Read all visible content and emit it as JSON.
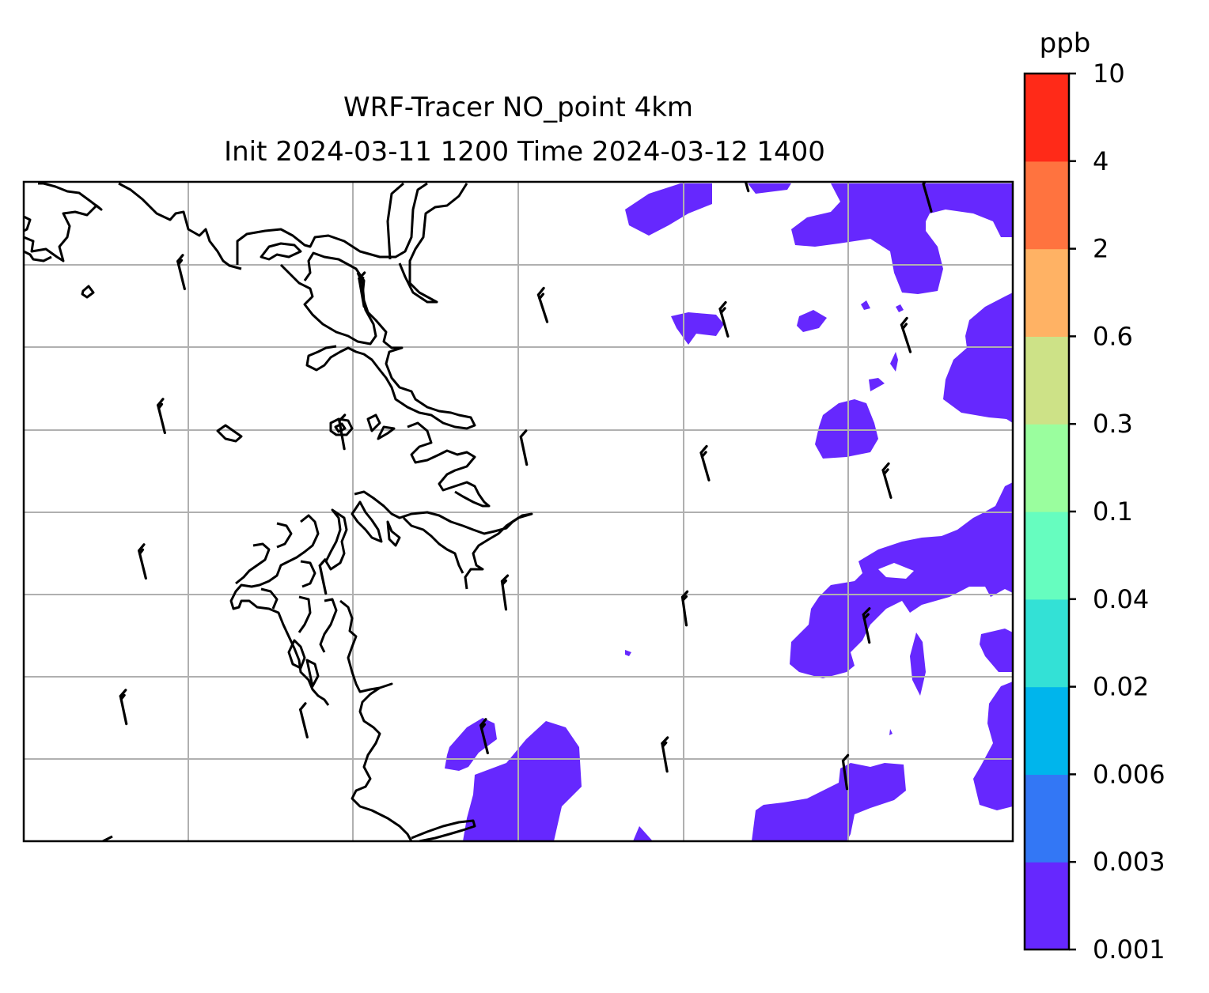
{
  "title": {
    "line1": "WRF-Tracer NO_point 4km",
    "line2": "Init 2024-03-11 1200 Time 2024-03-12 1400"
  },
  "colorbar": {
    "unit": "ppb",
    "levels": [
      "0.001",
      "0.003",
      "0.006",
      "0.02",
      "0.04",
      "0.1",
      "0.3",
      "0.6",
      "2",
      "4",
      "10"
    ],
    "colors": [
      "#6628fe",
      "#3377f5",
      "#00b5ec",
      "#33e1d6",
      "#66fdbf",
      "#9afe9e",
      "#cde287",
      "#ffb264",
      "#ff733f",
      "#ff2a18"
    ]
  },
  "map": {
    "field_color": "#6628fe",
    "coastline_color": "#000000",
    "gridline_color": "#b0b0b0",
    "barb_color": "#000000"
  }
}
